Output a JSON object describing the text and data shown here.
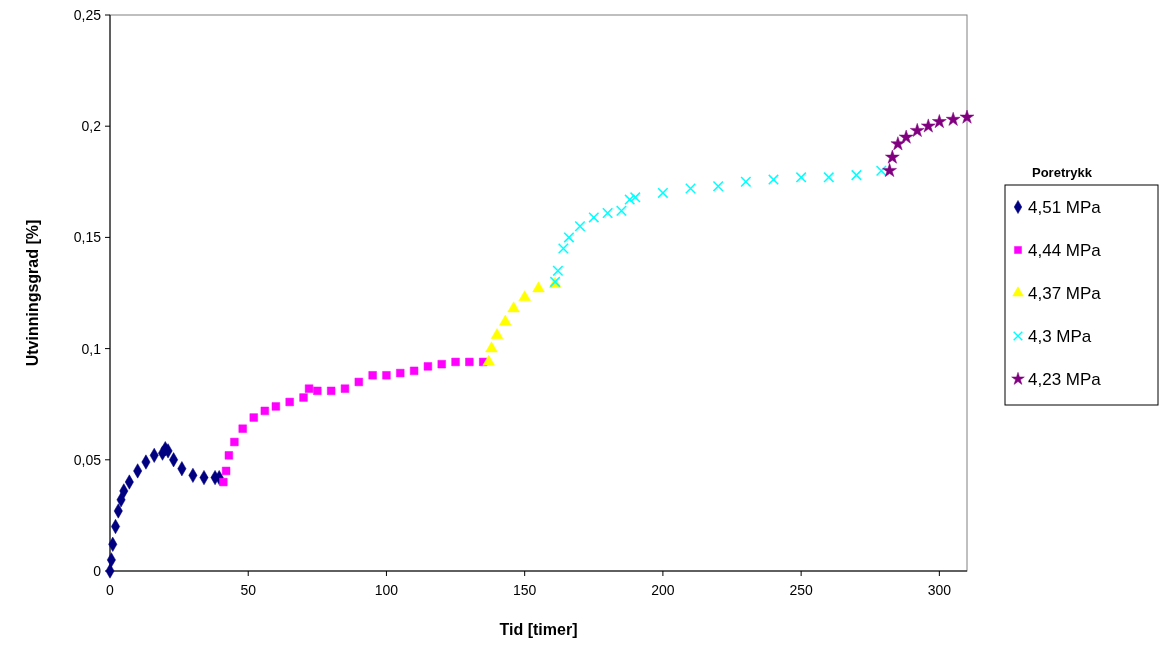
{
  "chart_data": {
    "type": "scatter",
    "xlabel": "Tid [timer]",
    "ylabel": "Utvinningsgrad [%]",
    "legend_title": "Poretrykk",
    "legend": "right",
    "xlim": [
      0,
      310
    ],
    "xticks": [
      0,
      50,
      100,
      150,
      200,
      250,
      300
    ],
    "ylim": [
      0,
      0.25
    ],
    "yticks": [
      0,
      {
        "value": 0.05,
        "label": "0,05"
      },
      {
        "value": 0.1,
        "label": "0,1"
      },
      {
        "value": 0.15,
        "label": "0,15"
      },
      {
        "value": 0.2,
        "label": "0,2"
      },
      {
        "value": 0.25,
        "label": "0,25"
      }
    ],
    "grid": false,
    "series": [
      {
        "name": "4,51 MPa",
        "color": "#000080",
        "marker": "diamond",
        "x": [
          0,
          0.5,
          1,
          2,
          3,
          4,
          5,
          7,
          10,
          13,
          16,
          19,
          20,
          21,
          23,
          26,
          30,
          34,
          38,
          39.5
        ],
        "values": [
          0,
          0.005,
          0.012,
          0.02,
          0.027,
          0.032,
          0.036,
          0.04,
          0.045,
          0.049,
          0.052,
          0.053,
          0.055,
          0.054,
          0.05,
          0.046,
          0.043,
          0.042,
          0.042,
          0.042
        ]
      },
      {
        "name": "4,44 MPa",
        "color": "#ff00ff",
        "marker": "square",
        "x": [
          41,
          42,
          43,
          45,
          48,
          52,
          56,
          60,
          65,
          70,
          72,
          75,
          80,
          85,
          90,
          95,
          100,
          105,
          110,
          115,
          120,
          125,
          130,
          135
        ],
        "values": [
          0.04,
          0.045,
          0.052,
          0.058,
          0.064,
          0.069,
          0.072,
          0.074,
          0.076,
          0.078,
          0.082,
          0.081,
          0.081,
          0.082,
          0.085,
          0.088,
          0.088,
          0.089,
          0.09,
          0.092,
          0.093,
          0.094,
          0.094,
          0.094
        ]
      },
      {
        "name": "4,37 MPa",
        "color": "#ffff00",
        "marker": "triangle",
        "x": [
          137,
          138,
          140,
          143,
          146,
          150,
          155,
          161
        ],
        "values": [
          0.094,
          0.1,
          0.106,
          0.112,
          0.118,
          0.123,
          0.127,
          0.129
        ]
      },
      {
        "name": "4,3 MPa",
        "color": "#00ffff",
        "marker": "cross",
        "x": [
          161,
          162,
          164,
          166,
          170,
          175,
          180,
          185,
          188,
          190,
          200,
          210,
          220,
          230,
          240,
          250,
          260,
          270,
          279
        ],
        "values": [
          0.13,
          0.135,
          0.145,
          0.15,
          0.155,
          0.159,
          0.161,
          0.162,
          0.167,
          0.168,
          0.17,
          0.172,
          0.173,
          0.175,
          0.176,
          0.177,
          0.177,
          0.178,
          0.18
        ]
      },
      {
        "name": "4,23 MPa",
        "color": "#800080",
        "marker": "star",
        "x": [
          282,
          283,
          285,
          288,
          292,
          296,
          300,
          305,
          310
        ],
        "values": [
          0.18,
          0.186,
          0.192,
          0.195,
          0.198,
          0.2,
          0.202,
          0.203,
          0.204
        ]
      }
    ]
  }
}
